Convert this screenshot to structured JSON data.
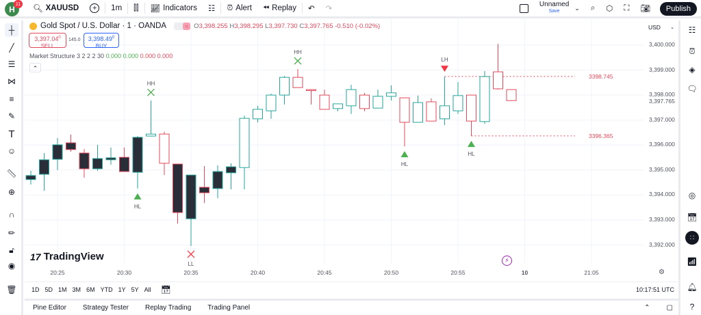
{
  "topbar": {
    "avatar_letter": "H",
    "notification_count": "11",
    "symbol": "XAUUSD",
    "interval": "1m",
    "indicators_label": "Indicators",
    "alert_label": "Alert",
    "replay_label": "Replay",
    "layout_name": "Unnamed",
    "save_label": "Save",
    "publish_label": "Publish"
  },
  "legend": {
    "title": "Gold Spot / U.S. Dollar · 1 · OANDA",
    "o": "3,398.255",
    "h": "3,398.295",
    "l": "3,397.730",
    "c": "3,397.765",
    "change": "-0.510 (-0.02%)",
    "sell_price": "3,397.04",
    "sell_sup": "0",
    "sell_label": "SELL",
    "spread": "145.0",
    "buy_price": "3,398.49",
    "buy_sup": "0",
    "buy_label": "BUY",
    "indicator_name": "Market Structure 3 2 2 2 30",
    "indicator_values": [
      "0.000",
      "0.000",
      "0.000",
      "0.000"
    ],
    "indicator_colors": [
      "#4caf50",
      "#4caf50",
      "#e2485c",
      "#e2485c"
    ]
  },
  "price_axis": {
    "currency": "USD",
    "labels": [
      "3,400.000",
      "3,399.000",
      "3,398.000",
      "3,397.000",
      "3,396.000",
      "3,395.000",
      "3,394.000",
      "3,393.000",
      "3,392.000"
    ],
    "last_price": "3,397.765"
  },
  "time_axis": {
    "labels": [
      "20:25",
      "20:30",
      "20:35",
      "20:40",
      "20:45",
      "20:50",
      "20:55",
      "10",
      "21:05"
    ]
  },
  "rangebar": {
    "ranges": [
      "1D",
      "5D",
      "1M",
      "3M",
      "6M",
      "YTD",
      "1Y",
      "5Y",
      "All"
    ],
    "clock": "10:17:51 UTC"
  },
  "bottom_tabs": [
    "Pine Editor",
    "Strategy Tester",
    "Replay Trading",
    "Trading Panel"
  ],
  "watermark": "TradingView",
  "colors": {
    "up": "#26a69a",
    "down": "#e2485c",
    "dark": "#2a2e39",
    "marker_up": "#4caf50",
    "marker_down": "#f23645"
  },
  "chart_data": {
    "type": "candlestick",
    "symbol": "XAUUSD",
    "interval": "1m",
    "ylim": [
      3391.6,
      3400.6
    ],
    "candles": [
      {
        "t": "20:23",
        "o": 3394.78,
        "h": 3394.97,
        "l": 3394.42,
        "c": 3394.62,
        "color": "up",
        "filled": true
      },
      {
        "t": "20:24",
        "o": 3395.41,
        "h": 3395.68,
        "l": 3394.17,
        "c": 3394.83,
        "color": "up",
        "filled": true
      },
      {
        "t": "20:25",
        "o": 3396.01,
        "h": 3396.28,
        "l": 3395.0,
        "c": 3395.43,
        "color": "up",
        "filled": true
      },
      {
        "t": "20:26",
        "o": 3396.09,
        "h": 3396.42,
        "l": 3395.73,
        "c": 3395.82,
        "color": "down",
        "filled": true
      },
      {
        "t": "20:27",
        "o": 3395.68,
        "h": 3395.84,
        "l": 3394.69,
        "c": 3395.05,
        "color": "down",
        "filled": true
      },
      {
        "t": "20:28",
        "o": 3395.46,
        "h": 3396.01,
        "l": 3394.97,
        "c": 3395.05,
        "color": "up",
        "filled": true
      },
      {
        "t": "20:29",
        "o": 3395.49,
        "h": 3395.9,
        "l": 3395.21,
        "c": 3395.41,
        "color": "up",
        "filled": true
      },
      {
        "t": "20:30",
        "o": 3395.51,
        "h": 3395.9,
        "l": 3394.94,
        "c": 3394.94,
        "color": "down",
        "filled": true
      },
      {
        "t": "20:31",
        "o": 3396.31,
        "h": 3396.36,
        "l": 3394.26,
        "c": 3394.91,
        "color": "up",
        "filled": true
      },
      {
        "t": "20:32",
        "o": 3396.36,
        "h": 3397.78,
        "l": 3396.34,
        "c": 3396.44,
        "color": "up",
        "filled": false
      },
      {
        "t": "20:33",
        "o": 3395.27,
        "h": 3396.53,
        "l": 3394.8,
        "c": 3396.44,
        "color": "down",
        "filled": false
      },
      {
        "t": "20:34",
        "o": 3395.24,
        "h": 3395.24,
        "l": 3392.86,
        "c": 3393.3,
        "color": "down",
        "filled": true
      },
      {
        "t": "20:35",
        "o": 3394.8,
        "h": 3394.8,
        "l": 3391.96,
        "c": 3393.05,
        "color": "up",
        "filled": true
      },
      {
        "t": "20:36",
        "o": 3394.31,
        "h": 3395.16,
        "l": 3393.68,
        "c": 3394.09,
        "color": "down",
        "filled": true
      },
      {
        "t": "20:37",
        "o": 3394.94,
        "h": 3395.19,
        "l": 3393.87,
        "c": 3394.26,
        "color": "up",
        "filled": true
      },
      {
        "t": "20:38",
        "o": 3395.13,
        "h": 3395.27,
        "l": 3394.23,
        "c": 3394.89,
        "color": "up",
        "filled": true
      },
      {
        "t": "20:39",
        "o": 3395.1,
        "h": 3397.18,
        "l": 3394.23,
        "c": 3397.07,
        "color": "up",
        "filled": false
      },
      {
        "t": "20:40",
        "o": 3397.05,
        "h": 3397.57,
        "l": 3396.91,
        "c": 3397.43,
        "color": "up",
        "filled": false
      },
      {
        "t": "20:41",
        "o": 3397.37,
        "h": 3398.06,
        "l": 3397.05,
        "c": 3398.0,
        "color": "up",
        "filled": false
      },
      {
        "t": "20:42",
        "o": 3398.0,
        "h": 3398.77,
        "l": 3397.62,
        "c": 3398.71,
        "color": "up",
        "filled": false
      },
      {
        "t": "20:43",
        "o": 3398.3,
        "h": 3399.04,
        "l": 3398.3,
        "c": 3398.71,
        "color": "down",
        "filled": false
      },
      {
        "t": "20:44",
        "o": 3398.22,
        "h": 3398.22,
        "l": 3397.62,
        "c": 3398.21,
        "color": "down",
        "filled": false
      },
      {
        "t": "20:45",
        "o": 3397.43,
        "h": 3398.22,
        "l": 3397.43,
        "c": 3398.0,
        "color": "down",
        "filled": false
      },
      {
        "t": "20:46",
        "o": 3397.46,
        "h": 3397.65,
        "l": 3397.35,
        "c": 3397.65,
        "color": "up",
        "filled": false
      },
      {
        "t": "20:47",
        "o": 3397.57,
        "h": 3398.41,
        "l": 3397.24,
        "c": 3398.22,
        "color": "up",
        "filled": false
      },
      {
        "t": "20:48",
        "o": 3397.46,
        "h": 3398.09,
        "l": 3397.35,
        "c": 3398.0,
        "color": "down",
        "filled": false
      },
      {
        "t": "20:49",
        "o": 3397.48,
        "h": 3398.22,
        "l": 3397.48,
        "c": 3397.95,
        "color": "up",
        "filled": false
      },
      {
        "t": "20:50",
        "o": 3397.95,
        "h": 3398.39,
        "l": 3397.78,
        "c": 3398.09,
        "color": "up",
        "filled": false
      },
      {
        "t": "20:51",
        "o": 3396.91,
        "h": 3397.89,
        "l": 3395.95,
        "c": 3397.89,
        "color": "down",
        "filled": false
      },
      {
        "t": "20:52",
        "o": 3396.91,
        "h": 3397.98,
        "l": 3396.91,
        "c": 3397.7,
        "color": "up",
        "filled": false
      },
      {
        "t": "20:53",
        "o": 3396.96,
        "h": 3397.87,
        "l": 3396.96,
        "c": 3397.73,
        "color": "down",
        "filled": false
      },
      {
        "t": "20:54",
        "o": 3397.05,
        "h": 3398.74,
        "l": 3396.8,
        "c": 3397.57,
        "color": "up",
        "filled": false
      },
      {
        "t": "20:55",
        "o": 3397.37,
        "h": 3398.52,
        "l": 3397.24,
        "c": 3397.98,
        "color": "up",
        "filled": false
      },
      {
        "t": "20:56",
        "o": 3396.96,
        "h": 3398.0,
        "l": 3396.36,
        "c": 3398.0,
        "color": "down",
        "filled": false
      },
      {
        "t": "20:57",
        "o": 3396.94,
        "h": 3398.96,
        "l": 3396.85,
        "c": 3398.74,
        "color": "up",
        "filled": false
      },
      {
        "t": "20:58",
        "o": 3398.25,
        "h": 3400.05,
        "l": 3398.22,
        "c": 3398.93,
        "color": "down",
        "filled": false
      },
      {
        "t": "20:59",
        "o": 3397.78,
        "h": 3398.22,
        "l": 3397.78,
        "c": 3398.22,
        "color": "down",
        "filled": false
      }
    ],
    "markers": [
      {
        "t": "20:32",
        "label": "HH",
        "shape": "cross",
        "color": "marker_up",
        "pos": "above"
      },
      {
        "t": "20:31",
        "label": "HL",
        "shape": "triangle-up",
        "color": "marker_up",
        "pos": "below"
      },
      {
        "t": "20:35",
        "label": "LL",
        "shape": "cross",
        "color": "marker_down",
        "pos": "below"
      },
      {
        "t": "20:43",
        "label": "HH",
        "shape": "cross",
        "color": "marker_up",
        "pos": "above"
      },
      {
        "t": "20:51",
        "label": "HL",
        "shape": "triangle-up",
        "color": "marker_up",
        "pos": "below"
      },
      {
        "t": "20:54",
        "label": "LH",
        "shape": "triangle-down",
        "color": "marker_down",
        "pos": "above"
      },
      {
        "t": "20:56",
        "label": "HL",
        "shape": "triangle-up",
        "color": "marker_up",
        "pos": "below"
      }
    ],
    "levels": [
      {
        "from": "20:54",
        "value": 3398.745,
        "label": "3398.745"
      },
      {
        "from": "20:56",
        "value": 3396.365,
        "label": "3396.365"
      }
    ]
  }
}
